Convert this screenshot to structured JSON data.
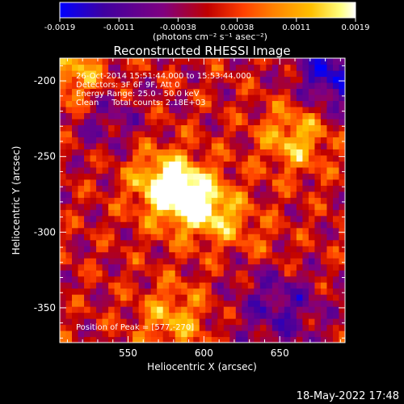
{
  "chart_data": {
    "type": "heatmap",
    "title": "Reconstructed RHESSI Image",
    "xlabel": "Heliocentric X (arcsec)",
    "ylabel": "Heliocentric Y (arcsec)",
    "xlim": [
      505,
      693
    ],
    "ylim": [
      -373,
      -185
    ],
    "x_ticks": [
      550,
      600,
      650
    ],
    "y_ticks": [
      -200,
      -250,
      -300,
      -350
    ],
    "colorbar": {
      "label": "(photons cm⁻² s⁻¹ asec⁻²)",
      "range": [
        -0.0019,
        0.0019
      ],
      "ticks": [
        "-0.0019",
        "-0.0011",
        "-0.00038",
        "0.00038",
        "0.0011",
        "0.0019"
      ],
      "colors": [
        "#0000ff",
        "#4000a0",
        "#800080",
        "#c00000",
        "#ff4000",
        "#ff8000",
        "#ffc000",
        "#ffff80",
        "#ffffff"
      ]
    },
    "annotations": [
      "26-Oct-2014 15:51:44.000 to 15:53:44.000",
      "Detectors: 3F 6F 9F, Att 0",
      "Energy Range: 25.0 - 50.0 keV",
      "Clean     Total counts: 2.18E+03"
    ],
    "peak_label": "Position of Peak = [577,-270]",
    "peaks": [
      {
        "x": 577,
        "y": -270,
        "value": 0.0019
      },
      {
        "x": 660,
        "y": -237,
        "value": 0.0013
      },
      {
        "x": 600,
        "y": -283,
        "value": 0.0012
      },
      {
        "x": 580,
        "y": -357,
        "value": 0.0011
      },
      {
        "x": 515,
        "y": -196,
        "value": 0.0012
      }
    ]
  },
  "footer": {
    "timestamp": "18-May-2022 17:48"
  }
}
